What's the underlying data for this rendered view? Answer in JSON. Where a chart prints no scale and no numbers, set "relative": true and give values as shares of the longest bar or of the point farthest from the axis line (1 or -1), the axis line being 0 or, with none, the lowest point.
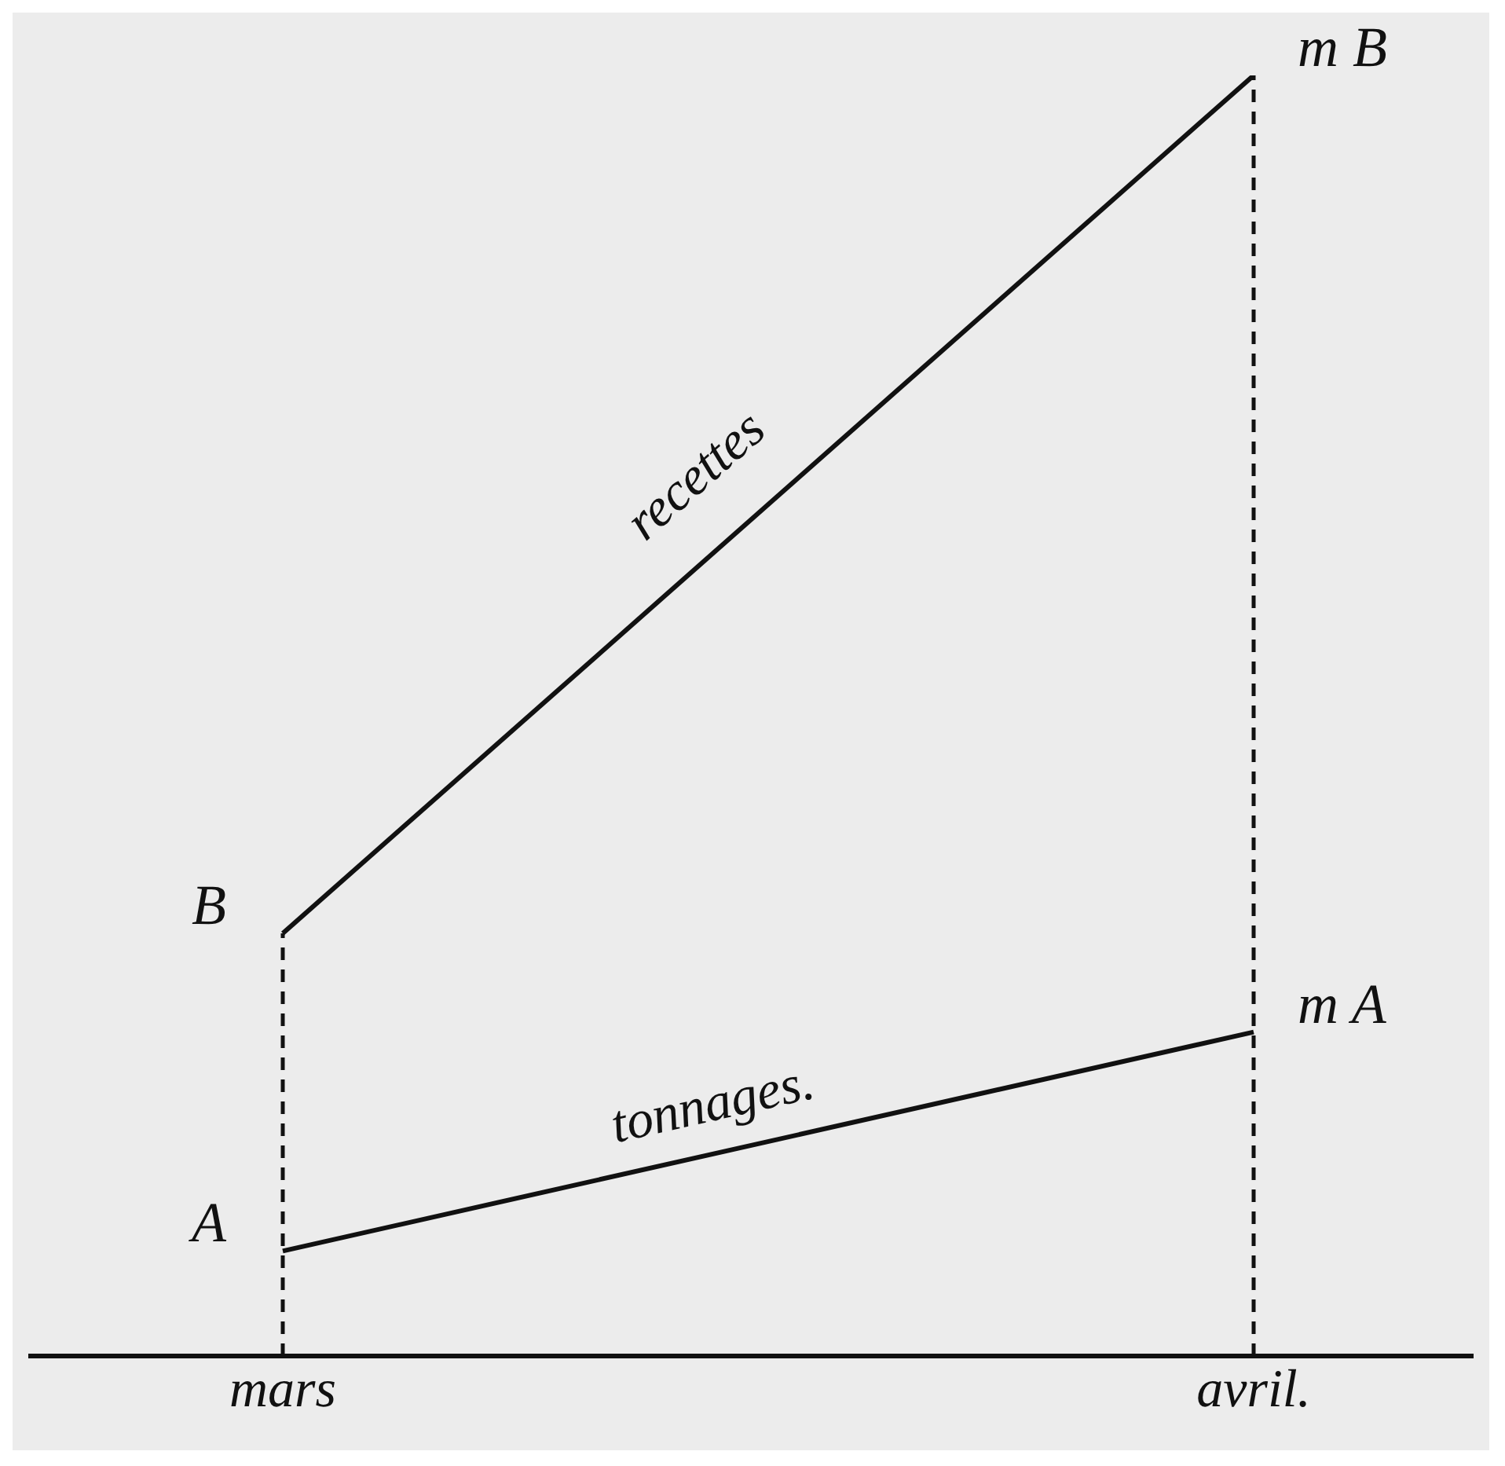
{
  "chart_data": {
    "type": "line",
    "relative": true,
    "categories": [
      "mars",
      "avril."
    ],
    "series": [
      {
        "name": "recettes",
        "color": "#111111",
        "values": [
          0.33,
          1
        ]
      },
      {
        "name": "tonnages.",
        "color": "#111111",
        "values": [
          0.082,
          0.253
        ]
      }
    ],
    "marker": "none",
    "line_style": "solid",
    "tick_labels": "x",
    "ref_lines": [
      {
        "axis": "x",
        "value": "mars",
        "line_style": "dashed",
        "color": "#111111"
      },
      {
        "axis": "x",
        "value": "avril.",
        "line_style": "dashed",
        "color": "#111111"
      }
    ],
    "annotations": [
      {
        "text": "B",
        "x": "mars",
        "y": 0.33
      },
      {
        "text": "m B",
        "x": "avril.",
        "y": 1
      },
      {
        "text": "A",
        "x": "mars",
        "y": 0.082
      },
      {
        "text": "m A",
        "x": "avril.",
        "y": 0.253
      }
    ]
  }
}
